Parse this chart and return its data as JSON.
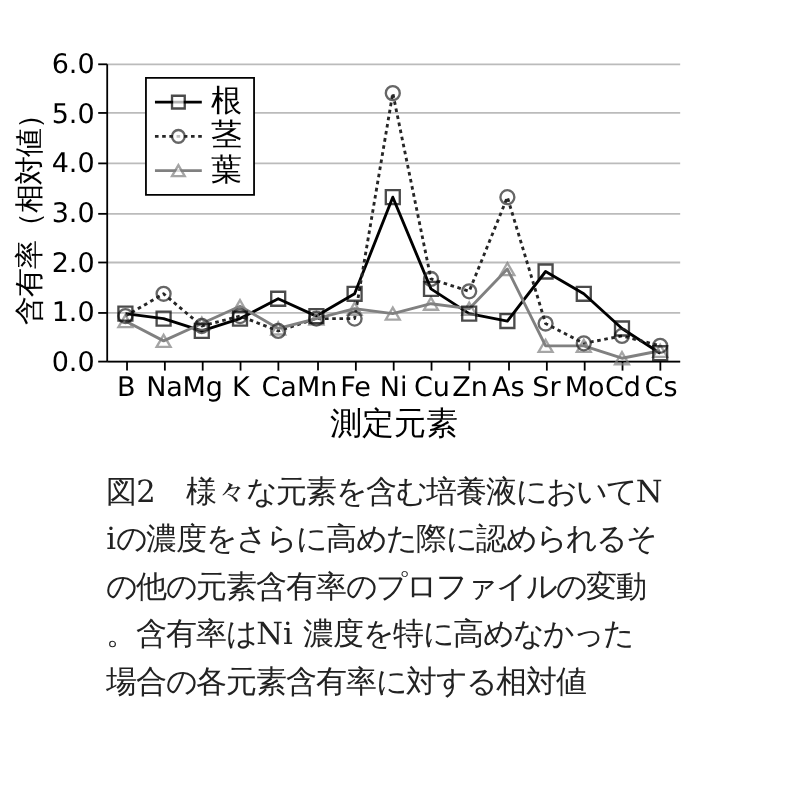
{
  "chart_data": {
    "type": "line",
    "categories": [
      "B",
      "Na",
      "Mg",
      "K",
      "Ca",
      "Mn",
      "Fe",
      "Ni",
      "Cu",
      "Zn",
      "As",
      "Sr",
      "Mo",
      "Cd",
      "Cs"
    ],
    "series": [
      {
        "name": "根",
        "color": "#000000",
        "marker": "square",
        "line_style": "solid",
        "values": [
          0.95,
          0.85,
          0.6,
          0.85,
          1.25,
          0.9,
          1.35,
          3.3,
          1.45,
          0.95,
          0.8,
          1.8,
          1.35,
          0.65,
          0.15
        ]
      },
      {
        "name": "茎",
        "color": "#262626",
        "marker": "circle",
        "line_style": "dotted",
        "values": [
          0.9,
          1.35,
          0.7,
          0.9,
          0.6,
          0.85,
          0.85,
          5.4,
          1.65,
          1.4,
          3.3,
          0.75,
          0.35,
          0.5,
          0.3
        ]
      },
      {
        "name": "葉",
        "color": "#808080",
        "marker": "triangle",
        "line_style": "solid",
        "values": [
          0.8,
          0.4,
          0.75,
          1.1,
          0.65,
          0.85,
          1.05,
          0.95,
          1.15,
          1.05,
          1.85,
          0.3,
          0.3,
          0.05,
          0.2
        ]
      }
    ],
    "xlabel": "測定元素",
    "ylabel": "含有率（相対値）",
    "ylim": [
      0,
      6
    ],
    "yticks": [
      {
        "value": 0,
        "label": "0.0"
      },
      {
        "value": 1,
        "label": "1.0"
      },
      {
        "value": 2,
        "label": "2.0"
      },
      {
        "value": 3,
        "label": "3.0"
      },
      {
        "value": 4,
        "label": "4.0"
      },
      {
        "value": 5,
        "label": "5.0"
      },
      {
        "value": 6,
        "label": "6.0"
      }
    ],
    "grid": "y",
    "legend": "top left",
    "annotations": [
      "図2　様々な元素を含む培養液においてNiの濃度をさらに高めた際に認められるその他の元素含有率のプロファイルの変動。含有率はNi 濃度を特に高めなかった場合の各元素含有率に対する相対値"
    ]
  }
}
